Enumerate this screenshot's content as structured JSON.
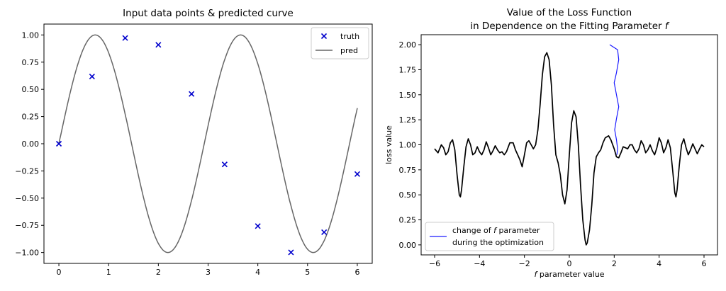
{
  "chart_data": [
    {
      "type": "line",
      "title": "Input data points & predicted curve",
      "xlabel": "",
      "ylabel": "",
      "xlim": [
        -0.3,
        6.3
      ],
      "ylim": [
        -1.1,
        1.1
      ],
      "x_ticks": [
        0,
        1,
        2,
        3,
        4,
        5,
        6
      ],
      "x_tick_labels": [
        "0",
        "1",
        "2",
        "3",
        "4",
        "5",
        "6"
      ],
      "y_ticks": [
        -1.0,
        -0.75,
        -0.5,
        -0.25,
        0.0,
        0.25,
        0.5,
        0.75,
        1.0
      ],
      "y_tick_labels": [
        "−1.00",
        "−0.75",
        "−0.50",
        "−0.25",
        "0.00",
        "0.25",
        "0.50",
        "0.75",
        "1.00"
      ],
      "grid": false,
      "legend_position": "top-right",
      "series": [
        {
          "name": "truth",
          "kind": "scatter",
          "marker": "x",
          "color": "#0000cc",
          "points": [
            {
              "x": 0.0,
              "y": 0.0
            },
            {
              "x": 0.667,
              "y": 0.618
            },
            {
              "x": 1.333,
              "y": 0.972
            },
            {
              "x": 2.0,
              "y": 0.909
            },
            {
              "x": 2.667,
              "y": 0.458
            },
            {
              "x": 3.333,
              "y": -0.19
            },
            {
              "x": 4.0,
              "y": -0.757
            },
            {
              "x": 4.667,
              "y": -0.999
            },
            {
              "x": 5.333,
              "y": -0.813
            },
            {
              "x": 6.0,
              "y": -0.279
            }
          ]
        },
        {
          "name": "pred",
          "kind": "line",
          "color": "#666666",
          "function": "sin(2.15*x)",
          "x_range": [
            0,
            6
          ]
        }
      ]
    },
    {
      "type": "line",
      "title": [
        "Value of the Loss Function",
        "in Dependence on the Fitting Parameter f"
      ],
      "xlabel": "f parameter value",
      "ylabel": "loss value",
      "xlim": [
        -6.6,
        6.6
      ],
      "ylim": [
        -0.1,
        2.1
      ],
      "x_ticks": [
        -6,
        -4,
        -2,
        0,
        2,
        4,
        6
      ],
      "x_tick_labels": [
        "−6",
        "−4",
        "−2",
        "0",
        "2",
        "4",
        "6"
      ],
      "y_ticks": [
        0.0,
        0.25,
        0.5,
        0.75,
        1.0,
        1.25,
        1.5,
        1.75,
        2.0
      ],
      "y_tick_labels": [
        "0.00",
        "0.25",
        "0.50",
        "0.75",
        "1.00",
        "1.25",
        "1.50",
        "1.75",
        "2.00"
      ],
      "grid": false,
      "legend_position": "bottom-left",
      "series": [
        {
          "name": "loss",
          "kind": "line",
          "color": "#000000",
          "points": [
            {
              "x": -6.0,
              "y": 0.96
            },
            {
              "x": -5.85,
              "y": 0.92
            },
            {
              "x": -5.7,
              "y": 1.0
            },
            {
              "x": -5.6,
              "y": 0.97
            },
            {
              "x": -5.5,
              "y": 0.9
            },
            {
              "x": -5.4,
              "y": 0.93
            },
            {
              "x": -5.3,
              "y": 1.02
            },
            {
              "x": -5.2,
              "y": 1.05
            },
            {
              "x": -5.1,
              "y": 0.95
            },
            {
              "x": -5.0,
              "y": 0.7
            },
            {
              "x": -4.9,
              "y": 0.5
            },
            {
              "x": -4.85,
              "y": 0.48
            },
            {
              "x": -4.8,
              "y": 0.55
            },
            {
              "x": -4.7,
              "y": 0.78
            },
            {
              "x": -4.6,
              "y": 0.98
            },
            {
              "x": -4.5,
              "y": 1.06
            },
            {
              "x": -4.4,
              "y": 1.0
            },
            {
              "x": -4.3,
              "y": 0.9
            },
            {
              "x": -4.2,
              "y": 0.92
            },
            {
              "x": -4.1,
              "y": 0.98
            },
            {
              "x": -4.0,
              "y": 0.93
            },
            {
              "x": -3.9,
              "y": 0.9
            },
            {
              "x": -3.8,
              "y": 0.95
            },
            {
              "x": -3.7,
              "y": 1.03
            },
            {
              "x": -3.6,
              "y": 0.97
            },
            {
              "x": -3.5,
              "y": 0.9
            },
            {
              "x": -3.4,
              "y": 0.94
            },
            {
              "x": -3.3,
              "y": 0.99
            },
            {
              "x": -3.2,
              "y": 0.95
            },
            {
              "x": -3.1,
              "y": 0.92
            },
            {
              "x": -3.0,
              "y": 0.93
            },
            {
              "x": -2.9,
              "y": 0.9
            },
            {
              "x": -2.8,
              "y": 0.93
            },
            {
              "x": -2.65,
              "y": 1.02
            },
            {
              "x": -2.5,
              "y": 1.02
            },
            {
              "x": -2.4,
              "y": 0.95
            },
            {
              "x": -2.3,
              "y": 0.9
            },
            {
              "x": -2.2,
              "y": 0.85
            },
            {
              "x": -2.1,
              "y": 0.78
            },
            {
              "x": -2.0,
              "y": 0.9
            },
            {
              "x": -1.9,
              "y": 1.02
            },
            {
              "x": -1.8,
              "y": 1.04
            },
            {
              "x": -1.7,
              "y": 1.0
            },
            {
              "x": -1.6,
              "y": 0.96
            },
            {
              "x": -1.5,
              "y": 1.0
            },
            {
              "x": -1.4,
              "y": 1.15
            },
            {
              "x": -1.3,
              "y": 1.4
            },
            {
              "x": -1.2,
              "y": 1.7
            },
            {
              "x": -1.1,
              "y": 1.88
            },
            {
              "x": -1.0,
              "y": 1.92
            },
            {
              "x": -0.9,
              "y": 1.85
            },
            {
              "x": -0.8,
              "y": 1.6
            },
            {
              "x": -0.7,
              "y": 1.2
            },
            {
              "x": -0.6,
              "y": 0.9
            },
            {
              "x": -0.5,
              "y": 0.82
            },
            {
              "x": -0.4,
              "y": 0.7
            },
            {
              "x": -0.3,
              "y": 0.5
            },
            {
              "x": -0.2,
              "y": 0.41
            },
            {
              "x": -0.1,
              "y": 0.55
            },
            {
              "x": 0.0,
              "y": 0.9
            },
            {
              "x": 0.1,
              "y": 1.22
            },
            {
              "x": 0.2,
              "y": 1.34
            },
            {
              "x": 0.3,
              "y": 1.28
            },
            {
              "x": 0.4,
              "y": 1.0
            },
            {
              "x": 0.5,
              "y": 0.6
            },
            {
              "x": 0.6,
              "y": 0.25
            },
            {
              "x": 0.7,
              "y": 0.05
            },
            {
              "x": 0.75,
              "y": 0.0
            },
            {
              "x": 0.8,
              "y": 0.02
            },
            {
              "x": 0.9,
              "y": 0.15
            },
            {
              "x": 1.0,
              "y": 0.4
            },
            {
              "x": 1.1,
              "y": 0.72
            },
            {
              "x": 1.2,
              "y": 0.88
            },
            {
              "x": 1.3,
              "y": 0.92
            },
            {
              "x": 1.4,
              "y": 0.95
            },
            {
              "x": 1.5,
              "y": 1.02
            },
            {
              "x": 1.6,
              "y": 1.07
            },
            {
              "x": 1.75,
              "y": 1.09
            },
            {
              "x": 1.85,
              "y": 1.05
            },
            {
              "x": 2.0,
              "y": 0.96
            },
            {
              "x": 2.1,
              "y": 0.88
            },
            {
              "x": 2.2,
              "y": 0.87
            },
            {
              "x": 2.3,
              "y": 0.92
            },
            {
              "x": 2.4,
              "y": 0.98
            },
            {
              "x": 2.5,
              "y": 0.97
            },
            {
              "x": 2.6,
              "y": 0.96
            },
            {
              "x": 2.7,
              "y": 1.0
            },
            {
              "x": 2.8,
              "y": 1.0
            },
            {
              "x": 2.9,
              "y": 0.95
            },
            {
              "x": 3.0,
              "y": 0.92
            },
            {
              "x": 3.1,
              "y": 0.96
            },
            {
              "x": 3.2,
              "y": 1.04
            },
            {
              "x": 3.3,
              "y": 1.0
            },
            {
              "x": 3.4,
              "y": 0.92
            },
            {
              "x": 3.5,
              "y": 0.95
            },
            {
              "x": 3.6,
              "y": 1.0
            },
            {
              "x": 3.7,
              "y": 0.94
            },
            {
              "x": 3.8,
              "y": 0.9
            },
            {
              "x": 3.9,
              "y": 0.97
            },
            {
              "x": 4.0,
              "y": 1.07
            },
            {
              "x": 4.1,
              "y": 1.02
            },
            {
              "x": 4.2,
              "y": 0.92
            },
            {
              "x": 4.3,
              "y": 0.97
            },
            {
              "x": 4.4,
              "y": 1.05
            },
            {
              "x": 4.5,
              "y": 0.97
            },
            {
              "x": 4.6,
              "y": 0.75
            },
            {
              "x": 4.7,
              "y": 0.52
            },
            {
              "x": 4.75,
              "y": 0.48
            },
            {
              "x": 4.8,
              "y": 0.55
            },
            {
              "x": 4.9,
              "y": 0.8
            },
            {
              "x": 5.0,
              "y": 1.0
            },
            {
              "x": 5.1,
              "y": 1.06
            },
            {
              "x": 5.2,
              "y": 0.97
            },
            {
              "x": 5.3,
              "y": 0.9
            },
            {
              "x": 5.4,
              "y": 0.95
            },
            {
              "x": 5.5,
              "y": 1.01
            },
            {
              "x": 5.6,
              "y": 0.96
            },
            {
              "x": 5.7,
              "y": 0.91
            },
            {
              "x": 5.8,
              "y": 0.96
            },
            {
              "x": 5.9,
              "y": 1.0
            },
            {
              "x": 6.0,
              "y": 0.98
            }
          ]
        },
        {
          "name": "change of f parameter during the optimization",
          "kind": "line",
          "color": "#1a1aff",
          "points": [
            {
              "x": 1.8,
              "y": 2.0
            },
            {
              "x": 2.15,
              "y": 1.95
            },
            {
              "x": 2.2,
              "y": 1.85
            },
            {
              "x": 2.1,
              "y": 1.72
            },
            {
              "x": 2.0,
              "y": 1.62
            },
            {
              "x": 2.1,
              "y": 1.5
            },
            {
              "x": 2.2,
              "y": 1.38
            },
            {
              "x": 2.1,
              "y": 1.26
            },
            {
              "x": 2.02,
              "y": 1.15
            },
            {
              "x": 2.1,
              "y": 1.05
            },
            {
              "x": 2.15,
              "y": 0.96
            },
            {
              "x": 2.12,
              "y": 0.9
            }
          ]
        }
      ],
      "legend_entries": [
        {
          "line1": "change of f parameter",
          "line2": "during the optimization",
          "color": "#1a1aff"
        }
      ]
    }
  ]
}
